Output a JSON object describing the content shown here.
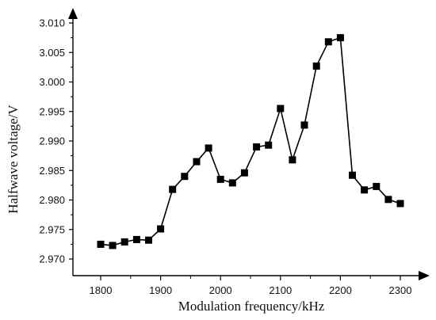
{
  "chart_data": {
    "type": "line",
    "title": "",
    "xlabel": "Modulation frequency/kHz",
    "ylabel": "Halfwave voltage/V",
    "xlim": [
      1750,
      2320
    ],
    "ylim": [
      2.9675,
      3.0125
    ],
    "x_ticks": [
      1800,
      1900,
      2000,
      2100,
      2200,
      2300
    ],
    "y_ticks": [
      "2.970",
      "2.975",
      "2.980",
      "2.985",
      "2.990",
      "2.995",
      "3.000",
      "3.005",
      "3.010"
    ],
    "marker": "square",
    "grid": false,
    "legend": "none",
    "colors": {
      "line": "#000000",
      "marker": "#000000",
      "axis": "#000000"
    },
    "series": [
      {
        "x": [
          1800,
          1820,
          1840,
          1860,
          1880,
          1900,
          1920,
          1940,
          1960,
          1980,
          2000,
          2020,
          2040,
          2060,
          2080,
          2100,
          2120,
          2140,
          2160,
          2180,
          2200,
          2220,
          2240,
          2260,
          2280,
          2300
        ],
        "y": [
          2.9725,
          2.9723,
          2.9729,
          2.9733,
          2.9732,
          2.9751,
          2.9818,
          2.984,
          2.9865,
          2.9888,
          2.9835,
          2.9829,
          2.9846,
          2.989,
          2.9893,
          2.9955,
          2.9868,
          2.9927,
          3.0027,
          3.0068,
          3.0075,
          2.9842,
          2.9817,
          2.9823,
          2.9801,
          2.9794
        ]
      }
    ]
  }
}
